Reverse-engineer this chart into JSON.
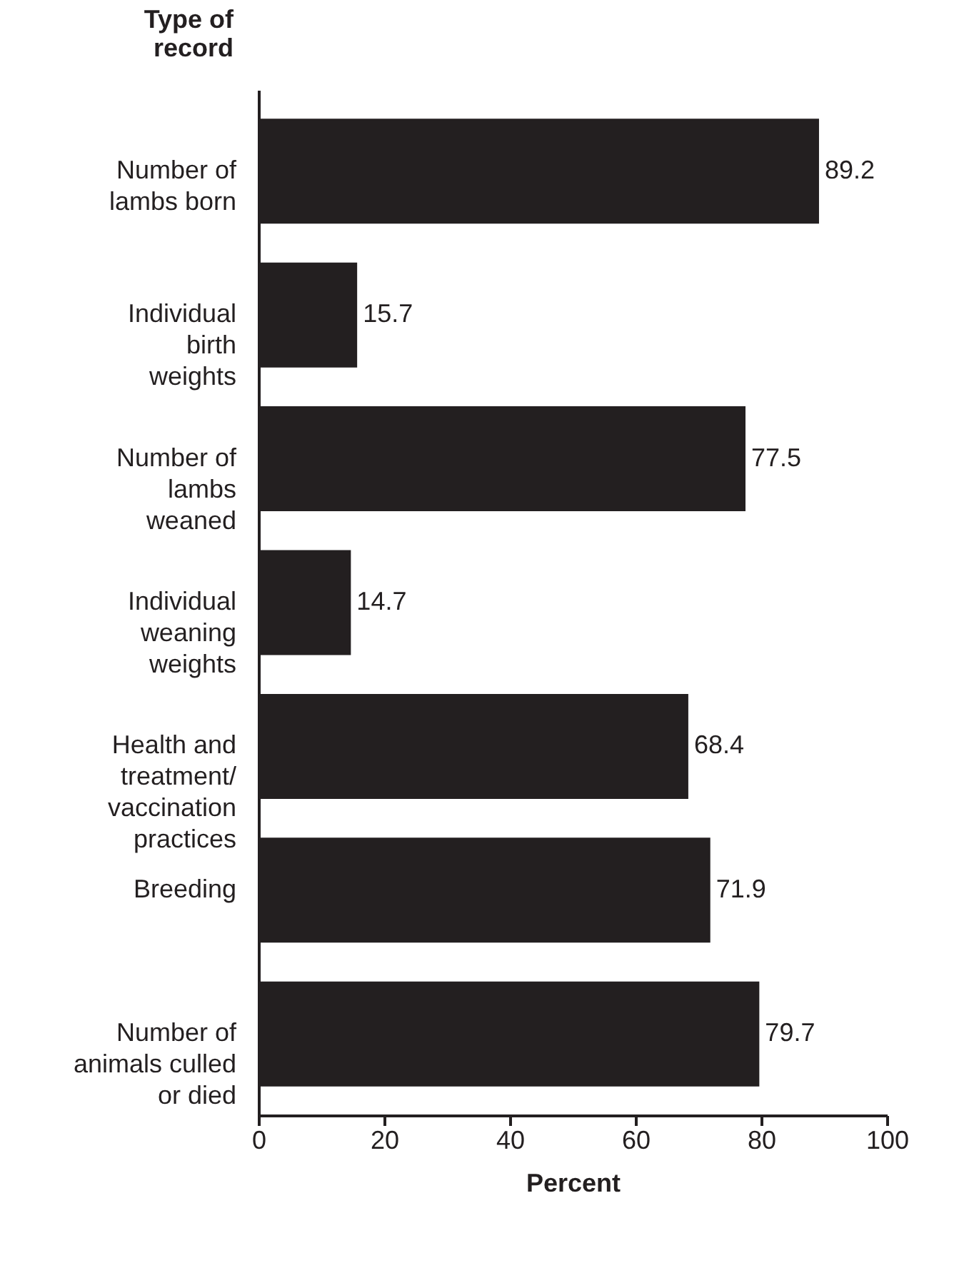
{
  "chart_data": {
    "type": "bar",
    "orientation": "horizontal",
    "ylabel": "Type of\nrecord",
    "xlabel": "Percent",
    "categories": [
      "Number of\nlambs born",
      "Individual\nbirth\nweights",
      "Number of\nlambs\nweaned",
      "Individual\nweaning\nweights",
      "Health and\ntreatment/\nvaccination\npractices",
      "Breeding",
      "Number of\nanimals culled\nor died"
    ],
    "values": [
      89.2,
      15.7,
      77.5,
      14.7,
      68.4,
      71.9,
      79.7
    ],
    "color": "#231f20",
    "xlim": [
      0,
      100
    ],
    "xticks": [
      0,
      20,
      40,
      60,
      80,
      100
    ],
    "grid": false,
    "data_labels": true
  }
}
